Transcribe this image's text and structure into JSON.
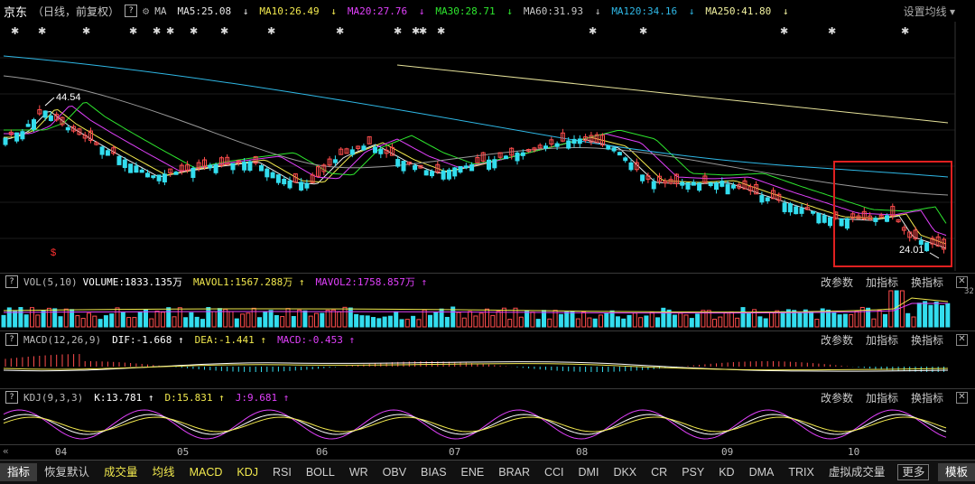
{
  "header": {
    "stock_name": "京东",
    "period": "（日线，前复权）",
    "help": "?",
    "ma_label": "MA",
    "ma": [
      {
        "label": "MA5:25.08",
        "arrow": "↓",
        "color": "#e8e8e8"
      },
      {
        "label": "MA10:26.49",
        "arrow": "↓",
        "color": "#f2e94e"
      },
      {
        "label": "MA20:27.76",
        "arrow": "↓",
        "color": "#e040fb"
      },
      {
        "label": "MA30:28.71",
        "arrow": "↓",
        "color": "#2ee62e"
      },
      {
        "label": "MA60:31.93",
        "arrow": "↓",
        "color": "#c8c8c8"
      },
      {
        "label": "MA120:34.16",
        "arrow": "↓",
        "color": "#2fb8e6"
      },
      {
        "label": "MA250:41.80",
        "arrow": "↓",
        "color": "#f2f2a0"
      }
    ],
    "settings": "设置均线",
    "high_label": "44.54",
    "low_label": "24.01"
  },
  "volume_panel": {
    "name": "VOL(5,10)",
    "value": "VOLUME:1833.135万",
    "mavol1": "MAVOL1:1567.288万",
    "mavol2": "MAVOL2:1758.857万",
    "axis_label": "32"
  },
  "macd_panel": {
    "name": "MACD(12,26,9)",
    "dif": "DIF:-1.668",
    "dea": "DEA:-1.441",
    "macd": "MACD:-0.453"
  },
  "kdj_panel": {
    "name": "KDJ(9,3,3)",
    "k": "K:13.781",
    "d": "D:15.831",
    "j": "J:9.681"
  },
  "panel_tools": {
    "params": "改参数",
    "add": "加指标",
    "swap": "换指标",
    "close": "✕"
  },
  "markers": {
    "star": "✱",
    "dollar": "$"
  },
  "months": [
    "04",
    "05",
    "06",
    "07",
    "08",
    "09",
    "10"
  ],
  "toolbar": [
    "指标",
    "恢复默认",
    "成交量",
    "均线",
    "MACD",
    "KDJ",
    "RSI",
    "BOLL",
    "WR",
    "OBV",
    "BIAS",
    "ENE",
    "BRAR",
    "CCI",
    "DMI",
    "DKX",
    "CR",
    "PSY",
    "KD",
    "DMA",
    "TRIX",
    "虚拟成交量",
    "更多",
    "模板"
  ],
  "colors": {
    "up": "#ff4d4d",
    "down": "#33ddee",
    "dif": "#ffffff",
    "dea": "#f2e94e",
    "j": "#e040fb",
    "highlight": "#e02020"
  }
}
